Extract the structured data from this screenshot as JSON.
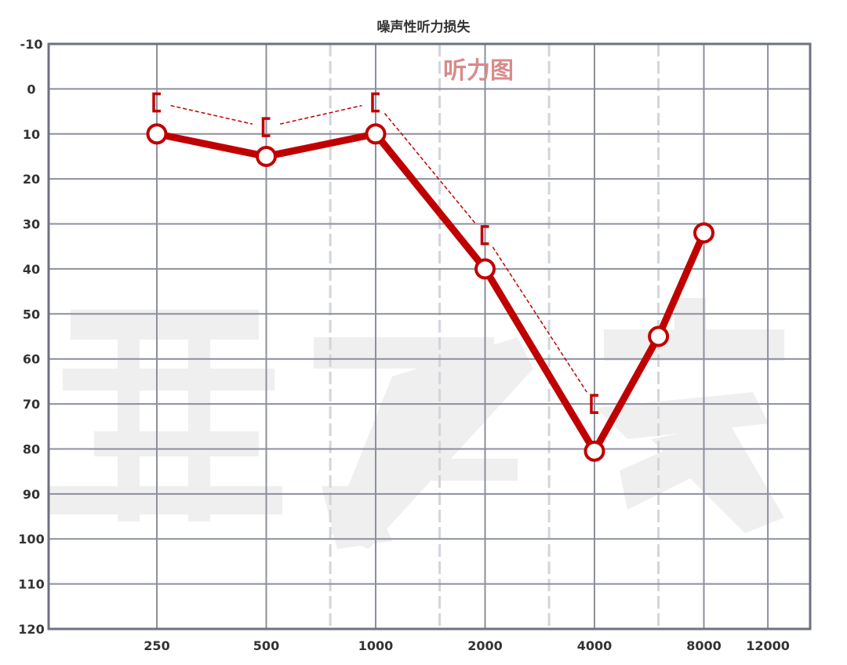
{
  "chart_data": {
    "type": "line",
    "title": "噪声性听力损失",
    "annotation": "听力图",
    "y_ticks": [
      -10,
      0,
      10,
      20,
      30,
      40,
      50,
      60,
      70,
      80,
      90,
      100,
      110,
      120
    ],
    "ylim": [
      -10,
      120
    ],
    "y_inverted": true,
    "x_ticks": [
      "250",
      "500",
      "1000",
      "2000",
      "4000",
      "8000",
      "12000"
    ],
    "x_scale": "octave",
    "intermediate_frequencies": [
      "750",
      "1500",
      "3000",
      "6000"
    ],
    "grid": true,
    "series": [
      {
        "marker": "circle",
        "points": [
          {
            "x": "250",
            "y": 10
          },
          {
            "x": "500",
            "y": 15
          },
          {
            "x": "1000",
            "y": 10
          },
          {
            "x": "2000",
            "y": 40
          },
          {
            "x": "4000",
            "y": 80.5
          },
          {
            "x": "6000",
            "y": 55
          },
          {
            "x": "8000",
            "y": 32
          }
        ]
      },
      {
        "marker": "bracket",
        "line": "dashed",
        "points": [
          {
            "x": "250",
            "y": 3
          },
          {
            "x": "500",
            "y": 8.5
          },
          {
            "x": "1000",
            "y": 3
          },
          {
            "x": "2000",
            "y": 32.5
          },
          {
            "x": "4000",
            "y": 70
          }
        ]
      }
    ],
    "colors": {
      "series": "#c00000",
      "grid": "#8c8f9e",
      "intermediate_grid": "#d4d4db",
      "annotation": "#d98a8a",
      "watermark": "#efefef"
    }
  }
}
